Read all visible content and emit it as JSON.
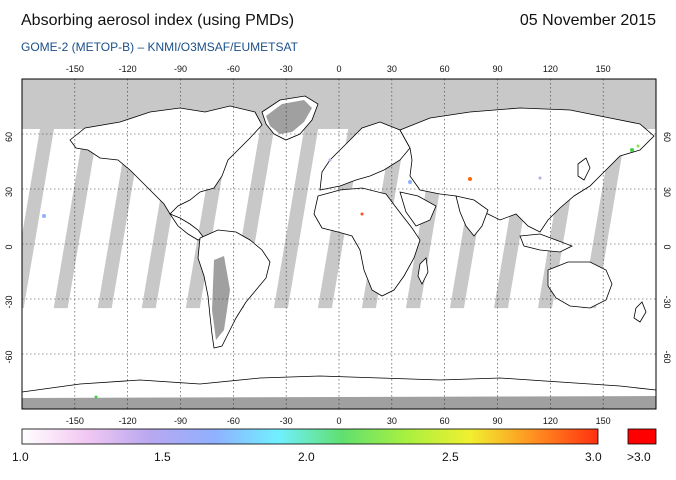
{
  "header": {
    "title": "Absorbing aerosol index (using PMDs)",
    "date": "05 November 2015",
    "subtitle": "GOME-2 (METOP-B)  –   KNMI/O3MSAF/EUMETSAT"
  },
  "map": {
    "projection": "equirectangular",
    "lon_range": [
      -180,
      180
    ],
    "lat_range": [
      -90,
      90
    ],
    "grid": true,
    "lon_ticks": [
      "-150",
      "-120",
      "-90",
      "-60",
      "-30",
      "0",
      "30",
      "60",
      "90",
      "120",
      "150"
    ],
    "lat_ticks": [
      "60",
      "30",
      "0",
      "-30",
      "-60"
    ],
    "colors": {
      "no_data": "#c8c8c8",
      "land_no_data": "#a0a0a0",
      "coast": "#000000",
      "grid": "#333333"
    }
  },
  "colorbar": {
    "labels": [
      "1.0",
      "1.5",
      "2.0",
      "2.5",
      "3.0"
    ],
    "over_label": ">3.0",
    "range": [
      1.0,
      3.0
    ],
    "over_color": "#ff0000",
    "gradient_stops": [
      "#ffffff",
      "#f2c8f2",
      "#b8a8f0",
      "#90b0ff",
      "#70f0ff",
      "#60e070",
      "#a8f040",
      "#f0f030",
      "#ff9020",
      "#ff3010"
    ]
  }
}
